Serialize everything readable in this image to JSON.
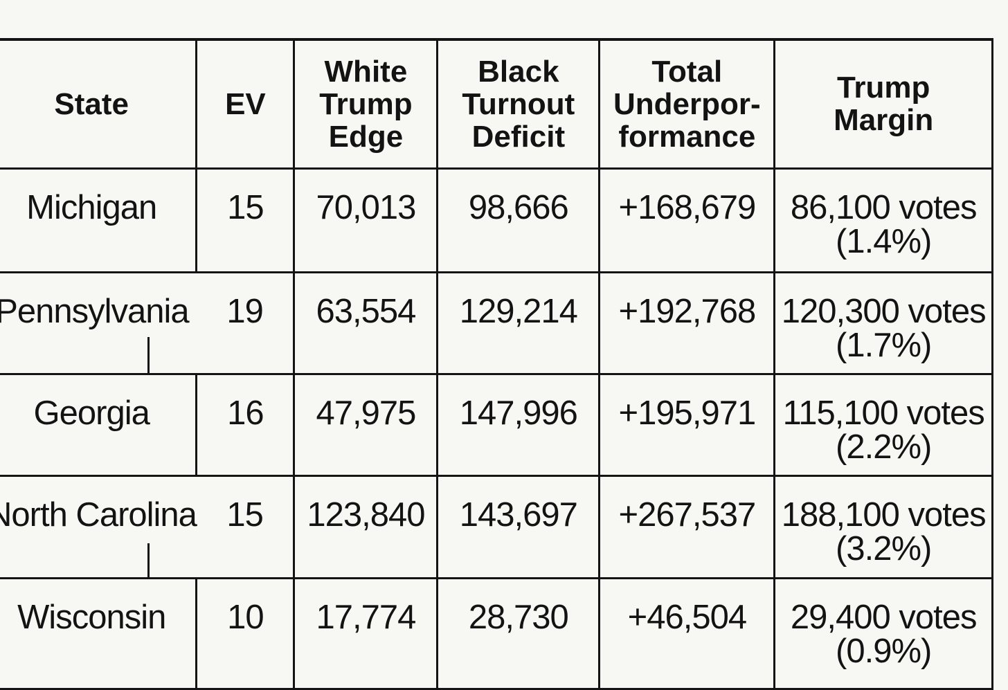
{
  "page": {
    "background_color": "#f7f7f4",
    "rule_color": "#141414",
    "text_color": "#131313"
  },
  "chart_data": {
    "type": "table",
    "columns": [
      "State",
      "EV",
      "White Trump Edge",
      "Black Turnout Deficit",
      "Total Underpor-formance",
      "Trump Margin"
    ],
    "rows": [
      {
        "state": "Michigan",
        "ev": "15",
        "white_trump_edge": "70,013",
        "black_turnout_deficit": "98,666",
        "total_underperformance": "+168,679",
        "margin_votes": "86,100 votes",
        "margin_pct": "(1.4%)"
      },
      {
        "state": "Pennsylvania",
        "ev": "19",
        "white_trump_edge": "63,554",
        "black_turnout_deficit": "129,214",
        "total_underperformance": "+192,768",
        "margin_votes": "120,300 votes",
        "margin_pct": "(1.7%)"
      },
      {
        "state": "Georgia",
        "ev": "16",
        "white_trump_edge": "47,975",
        "black_turnout_deficit": "147,996",
        "total_underperformance": "+195,971",
        "margin_votes": "115,100 votes",
        "margin_pct": "(2.2%)"
      },
      {
        "state": "North Carolina",
        "ev": "15",
        "white_trump_edge": "123,840",
        "black_turnout_deficit": "143,697",
        "total_underperformance": "+267,537",
        "margin_votes": "188,100 votes",
        "margin_pct": "(3.2%)"
      },
      {
        "state": "Wisconsin",
        "ev": "10",
        "white_trump_edge": "17,774",
        "black_turnout_deficit": "28,730",
        "total_underperformance": "+46,504",
        "margin_votes": "29,400 votes",
        "margin_pct": "(0.9%)"
      }
    ]
  }
}
